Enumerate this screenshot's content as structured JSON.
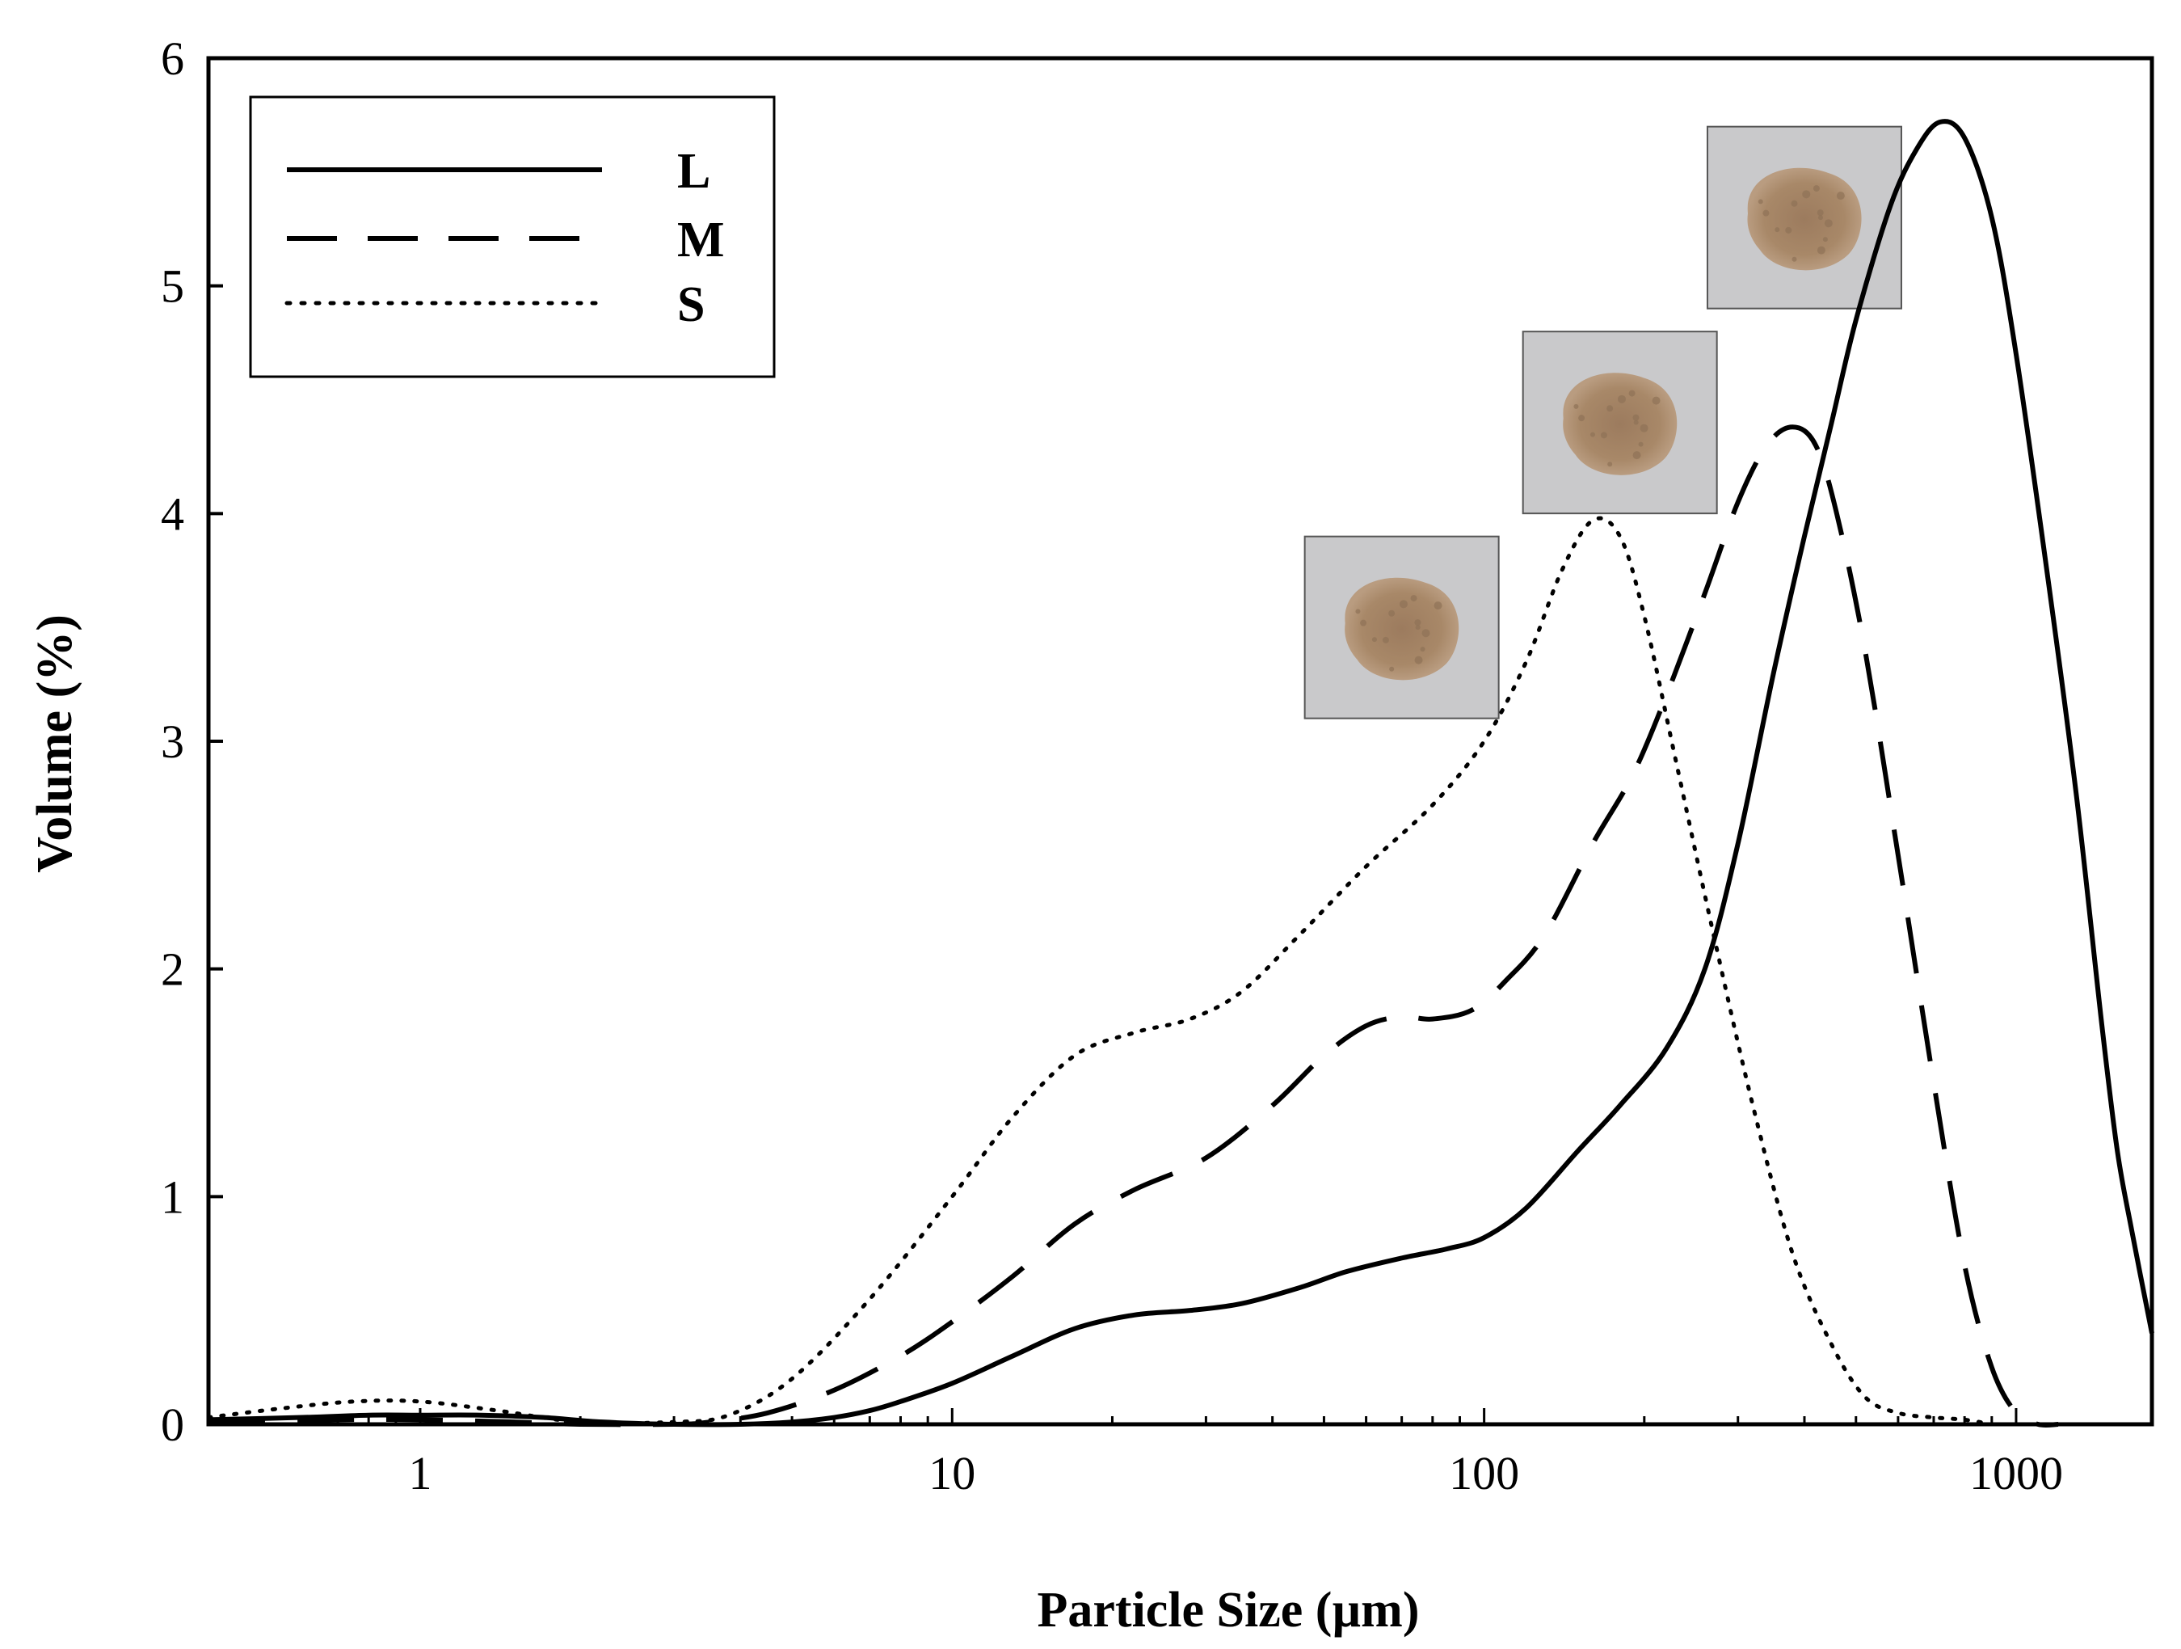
{
  "chart_data": {
    "type": "line",
    "title": "",
    "xlabel": "Particle Size (µm)",
    "ylabel": "Volume (%)",
    "xscale": "log",
    "xlim": [
      0.4,
      1800
    ],
    "ylim": [
      0,
      6
    ],
    "xticks": [
      {
        "value": 1,
        "label": "1"
      },
      {
        "value": 10,
        "label": "10"
      },
      {
        "value": 100,
        "label": "100"
      },
      {
        "value": 1000,
        "label": "1000"
      }
    ],
    "yticks": [
      {
        "value": 0,
        "label": "0"
      },
      {
        "value": 1,
        "label": "1"
      },
      {
        "value": 2,
        "label": "2"
      },
      {
        "value": 3,
        "label": "3"
      },
      {
        "value": 4,
        "label": "4"
      },
      {
        "value": 5,
        "label": "5"
      },
      {
        "value": 6,
        "label": "6"
      }
    ],
    "grid": false,
    "legend_position": "top-left",
    "series": [
      {
        "name": "L",
        "style": "solid",
        "points": [
          [
            0.4,
            0.02
          ],
          [
            0.6,
            0.03
          ],
          [
            0.8,
            0.04
          ],
          [
            1.0,
            0.04
          ],
          [
            1.3,
            0.04
          ],
          [
            1.7,
            0.03
          ],
          [
            2.2,
            0.01
          ],
          [
            3,
            0.0
          ],
          [
            4,
            0.0
          ],
          [
            5,
            0.01
          ],
          [
            6,
            0.03
          ],
          [
            7,
            0.06
          ],
          [
            8,
            0.1
          ],
          [
            10,
            0.18
          ],
          [
            13,
            0.3
          ],
          [
            17,
            0.42
          ],
          [
            22,
            0.48
          ],
          [
            28,
            0.5
          ],
          [
            35,
            0.53
          ],
          [
            45,
            0.6
          ],
          [
            55,
            0.67
          ],
          [
            70,
            0.73
          ],
          [
            85,
            0.77
          ],
          [
            100,
            0.82
          ],
          [
            120,
            0.95
          ],
          [
            150,
            1.2
          ],
          [
            180,
            1.4
          ],
          [
            220,
            1.65
          ],
          [
            260,
            2.0
          ],
          [
            300,
            2.55
          ],
          [
            350,
            3.3
          ],
          [
            400,
            3.9
          ],
          [
            450,
            4.4
          ],
          [
            500,
            4.85
          ],
          [
            580,
            5.35
          ],
          [
            650,
            5.6
          ],
          [
            720,
            5.72
          ],
          [
            800,
            5.65
          ],
          [
            900,
            5.3
          ],
          [
            1000,
            4.7
          ],
          [
            1150,
            3.7
          ],
          [
            1300,
            2.75
          ],
          [
            1450,
            1.75
          ],
          [
            1550,
            1.2
          ],
          [
            1650,
            0.85
          ],
          [
            1800,
            0.4
          ]
        ]
      },
      {
        "name": "M",
        "style": "dashed",
        "points": [
          [
            0.4,
            0.01
          ],
          [
            0.7,
            0.02
          ],
          [
            1.0,
            0.02
          ],
          [
            1.5,
            0.01
          ],
          [
            2,
            0.0
          ],
          [
            3,
            0.0
          ],
          [
            3.5,
            0.01
          ],
          [
            4.5,
            0.05
          ],
          [
            6,
            0.15
          ],
          [
            8,
            0.3
          ],
          [
            10,
            0.45
          ],
          [
            13,
            0.65
          ],
          [
            17,
            0.88
          ],
          [
            22,
            1.03
          ],
          [
            30,
            1.17
          ],
          [
            40,
            1.4
          ],
          [
            50,
            1.62
          ],
          [
            60,
            1.75
          ],
          [
            70,
            1.79
          ],
          [
            80,
            1.78
          ],
          [
            95,
            1.82
          ],
          [
            110,
            1.95
          ],
          [
            130,
            2.15
          ],
          [
            160,
            2.55
          ],
          [
            190,
            2.85
          ],
          [
            220,
            3.2
          ],
          [
            260,
            3.65
          ],
          [
            300,
            4.05
          ],
          [
            340,
            4.3
          ],
          [
            380,
            4.38
          ],
          [
            420,
            4.3
          ],
          [
            460,
            4.0
          ],
          [
            520,
            3.4
          ],
          [
            600,
            2.5
          ],
          [
            700,
            1.5
          ],
          [
            800,
            0.7
          ],
          [
            900,
            0.25
          ],
          [
            1000,
            0.05
          ],
          [
            1100,
            0.0
          ],
          [
            1200,
            0.0
          ]
        ]
      },
      {
        "name": "S",
        "style": "dotted",
        "points": [
          [
            0.4,
            0.03
          ],
          [
            0.55,
            0.07
          ],
          [
            0.75,
            0.1
          ],
          [
            1.0,
            0.1
          ],
          [
            1.4,
            0.06
          ],
          [
            2.0,
            0.01
          ],
          [
            3.0,
            0.01
          ],
          [
            3.8,
            0.04
          ],
          [
            5,
            0.2
          ],
          [
            7,
            0.55
          ],
          [
            10,
            1.0
          ],
          [
            13,
            1.35
          ],
          [
            17,
            1.62
          ],
          [
            22,
            1.72
          ],
          [
            28,
            1.78
          ],
          [
            35,
            1.9
          ],
          [
            45,
            2.15
          ],
          [
            60,
            2.45
          ],
          [
            80,
            2.72
          ],
          [
            100,
            3.0
          ],
          [
            120,
            3.35
          ],
          [
            140,
            3.75
          ],
          [
            160,
            3.97
          ],
          [
            180,
            3.9
          ],
          [
            200,
            3.55
          ],
          [
            230,
            2.9
          ],
          [
            270,
            2.15
          ],
          [
            320,
            1.4
          ],
          [
            380,
            0.75
          ],
          [
            450,
            0.35
          ],
          [
            520,
            0.12
          ],
          [
            600,
            0.05
          ],
          [
            700,
            0.03
          ],
          [
            800,
            0.02
          ],
          [
            900,
            0.0
          ]
        ]
      }
    ],
    "legend": [
      {
        "label": "L",
        "style": "solid"
      },
      {
        "label": "M",
        "style": "dashed"
      },
      {
        "label": "S",
        "style": "dotted"
      }
    ],
    "images": [
      {
        "name": "powder-photo-L",
        "near_series": "L",
        "x": 400,
        "y": 5.3
      },
      {
        "name": "powder-photo-M",
        "near_series": "M",
        "x": 180,
        "y": 4.4
      },
      {
        "name": "powder-photo-S",
        "near_series": "S",
        "x": 70,
        "y": 3.5
      }
    ],
    "colors": {
      "line": "#000000",
      "photo_background": "#c9c9cb",
      "powder": "#a88868",
      "powder_dark": "#8f7257"
    }
  }
}
